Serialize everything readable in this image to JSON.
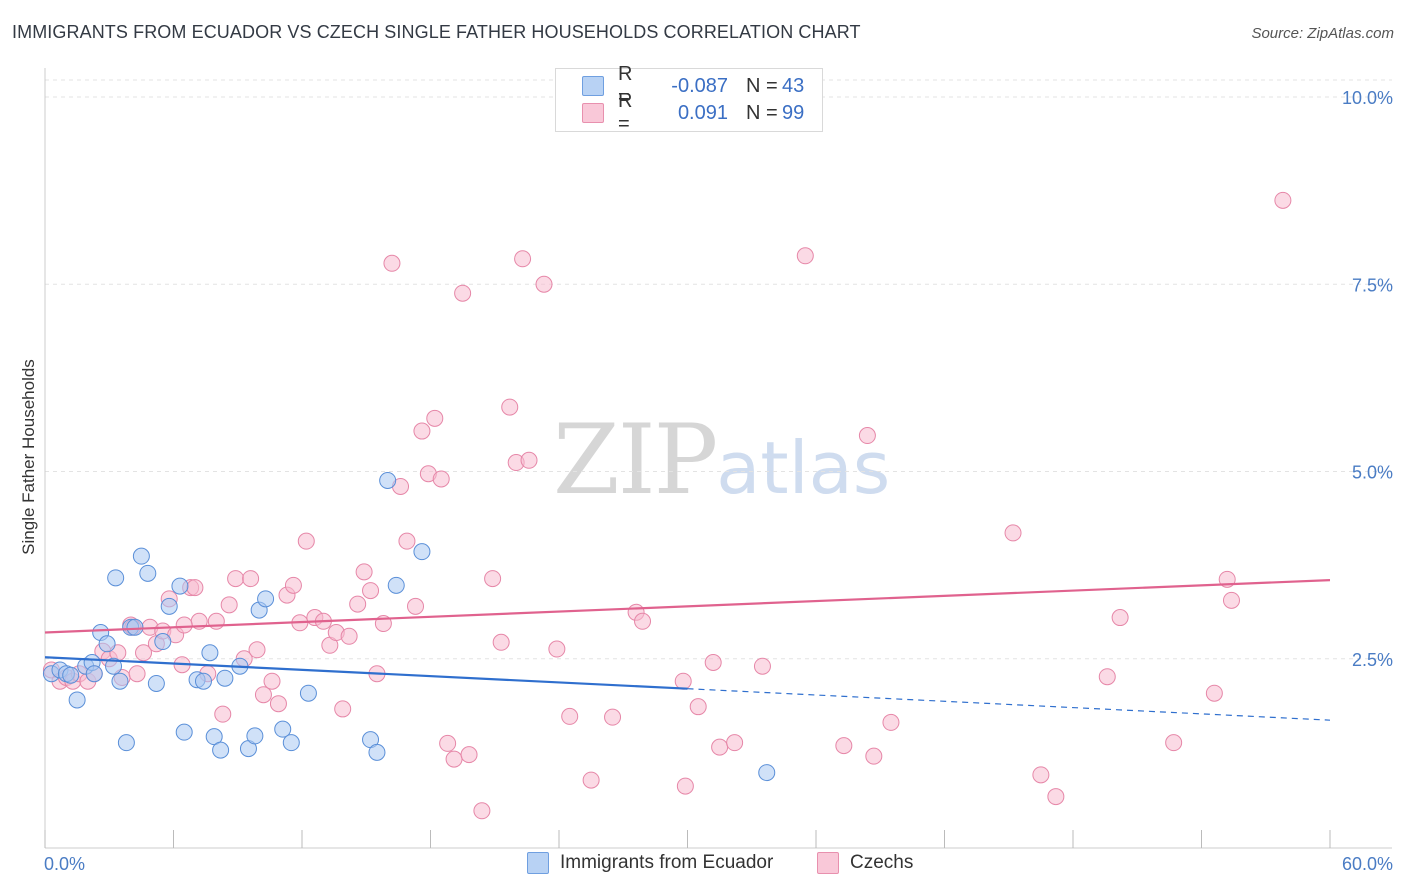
{
  "header": {
    "title": "IMMIGRANTS FROM ECUADOR VS CZECH SINGLE FATHER HOUSEHOLDS CORRELATION CHART",
    "source": "Source: ZipAtlas.com"
  },
  "watermark": {
    "zip": "ZIP",
    "atlas": "atlas"
  },
  "colors": {
    "ecuador_fill": "#a9c8f2",
    "ecuador_stroke": "#5a8fd8",
    "ecuador_line": "#2f6fce",
    "czech_fill": "#f7bcd0",
    "czech_stroke": "#e687a8",
    "czech_line": "#e0628e",
    "axis_text": "#4a7cc4",
    "grid": "#e3e3e3"
  },
  "legend_top": {
    "rows": [
      {
        "r_label": "R =",
        "r_value": "-0.087",
        "n_label": "N =",
        "n_value": "43"
      },
      {
        "r_label": "R =",
        "r_value": "0.091",
        "n_label": "N =",
        "n_value": "99"
      }
    ]
  },
  "legend_bottom": {
    "items": [
      "Immigrants from Ecuador",
      "Czechs"
    ]
  },
  "chart_data": {
    "type": "scatter",
    "title": "IMMIGRANTS FROM ECUADOR VS CZECH SINGLE FATHER HOUSEHOLDS CORRELATION CHART",
    "xlabel": "",
    "ylabel": "Single Father Households",
    "xlim": [
      0,
      60
    ],
    "ylim": [
      0,
      10.5
    ],
    "x_tick_labels": [
      "0.0%",
      "60.0%"
    ],
    "y_ticks": [
      2.5,
      5.0,
      7.5,
      10.0
    ],
    "y_tick_labels": [
      "2.5%",
      "5.0%",
      "7.5%",
      "10.0%"
    ],
    "grid": true,
    "legend_position": "top-center",
    "series": [
      {
        "name": "Immigrants from Ecuador",
        "r": -0.087,
        "n": 43,
        "trend": {
          "x0": 0,
          "y0": 2.52,
          "x1": 30,
          "y1": 2.1,
          "dashed_to_x": 60,
          "dashed_to_y": 1.68
        },
        "points": [
          [
            0.3,
            2.3
          ],
          [
            0.7,
            2.35
          ],
          [
            1.0,
            2.3
          ],
          [
            1.5,
            1.95
          ],
          [
            1.9,
            2.4
          ],
          [
            2.2,
            2.45
          ],
          [
            2.3,
            2.3
          ],
          [
            2.6,
            2.85
          ],
          [
            2.9,
            2.7
          ],
          [
            3.2,
            2.4
          ],
          [
            3.3,
            3.58
          ],
          [
            3.5,
            2.2
          ],
          [
            3.8,
            1.38
          ],
          [
            4.0,
            2.92
          ],
          [
            4.2,
            2.92
          ],
          [
            4.5,
            3.87
          ],
          [
            4.8,
            3.64
          ],
          [
            5.2,
            2.17
          ],
          [
            5.5,
            2.73
          ],
          [
            5.8,
            3.2
          ],
          [
            6.3,
            3.47
          ],
          [
            6.5,
            1.52
          ],
          [
            7.1,
            2.22
          ],
          [
            7.4,
            2.2
          ],
          [
            7.7,
            2.58
          ],
          [
            7.9,
            1.46
          ],
          [
            8.2,
            1.28
          ],
          [
            8.4,
            2.24
          ],
          [
            9.1,
            2.4
          ],
          [
            9.5,
            1.3
          ],
          [
            9.8,
            1.47
          ],
          [
            10.0,
            3.15
          ],
          [
            10.3,
            3.3
          ],
          [
            11.1,
            1.56
          ],
          [
            11.5,
            1.38
          ],
          [
            12.3,
            2.04
          ],
          [
            15.2,
            1.42
          ],
          [
            15.5,
            1.25
          ],
          [
            16.0,
            4.88
          ],
          [
            16.4,
            3.48
          ],
          [
            17.6,
            3.93
          ],
          [
            33.7,
            0.98
          ],
          [
            1.2,
            2.28
          ]
        ]
      },
      {
        "name": "Czechs",
        "r": 0.091,
        "n": 99,
        "trend": {
          "x0": 0,
          "y0": 2.85,
          "x1": 60,
          "y1": 3.55
        },
        "points": [
          [
            0.3,
            2.35
          ],
          [
            0.7,
            2.2
          ],
          [
            1.0,
            2.25
          ],
          [
            1.3,
            2.2
          ],
          [
            1.6,
            2.3
          ],
          [
            2.0,
            2.2
          ],
          [
            2.3,
            2.3
          ],
          [
            2.7,
            2.6
          ],
          [
            3.0,
            2.5
          ],
          [
            3.4,
            2.58
          ],
          [
            3.6,
            2.25
          ],
          [
            4.0,
            2.95
          ],
          [
            4.3,
            2.3
          ],
          [
            4.6,
            2.58
          ],
          [
            4.9,
            2.92
          ],
          [
            5.2,
            2.7
          ],
          [
            5.5,
            2.87
          ],
          [
            5.8,
            3.3
          ],
          [
            6.1,
            2.82
          ],
          [
            6.4,
            2.42
          ],
          [
            6.8,
            3.45
          ],
          [
            7.0,
            3.45
          ],
          [
            7.2,
            3.0
          ],
          [
            7.6,
            2.3
          ],
          [
            8.0,
            3.0
          ],
          [
            8.3,
            1.76
          ],
          [
            8.6,
            3.22
          ],
          [
            8.9,
            3.57
          ],
          [
            9.3,
            2.5
          ],
          [
            9.6,
            3.57
          ],
          [
            9.9,
            2.62
          ],
          [
            10.2,
            2.02
          ],
          [
            10.6,
            2.2
          ],
          [
            10.9,
            1.9
          ],
          [
            11.3,
            3.35
          ],
          [
            11.6,
            3.48
          ],
          [
            11.9,
            2.98
          ],
          [
            12.2,
            4.07
          ],
          [
            12.6,
            3.05
          ],
          [
            13.0,
            3.0
          ],
          [
            13.3,
            2.68
          ],
          [
            13.6,
            2.85
          ],
          [
            13.9,
            1.83
          ],
          [
            14.2,
            2.8
          ],
          [
            14.6,
            3.23
          ],
          [
            14.9,
            3.66
          ],
          [
            15.2,
            3.41
          ],
          [
            15.5,
            2.3
          ],
          [
            15.8,
            2.97
          ],
          [
            16.2,
            7.78
          ],
          [
            16.6,
            4.8
          ],
          [
            16.9,
            4.07
          ],
          [
            17.3,
            3.2
          ],
          [
            17.6,
            5.54
          ],
          [
            17.9,
            4.97
          ],
          [
            18.2,
            5.71
          ],
          [
            18.5,
            4.9
          ],
          [
            18.8,
            1.37
          ],
          [
            19.1,
            1.16
          ],
          [
            19.5,
            7.38
          ],
          [
            19.8,
            1.22
          ],
          [
            20.4,
            0.47
          ],
          [
            20.9,
            3.57
          ],
          [
            21.3,
            2.72
          ],
          [
            21.7,
            5.86
          ],
          [
            22.0,
            5.12
          ],
          [
            22.6,
            5.15
          ],
          [
            22.3,
            7.84
          ],
          [
            23.3,
            7.5
          ],
          [
            23.9,
            2.63
          ],
          [
            24.5,
            1.73
          ],
          [
            25.5,
            0.88
          ],
          [
            26.5,
            1.72
          ],
          [
            27.6,
            3.12
          ],
          [
            27.9,
            3.0
          ],
          [
            29.8,
            2.2
          ],
          [
            29.9,
            0.8
          ],
          [
            30.5,
            1.86
          ],
          [
            31.2,
            2.45
          ],
          [
            31.5,
            1.32
          ],
          [
            32.2,
            1.38
          ],
          [
            33.5,
            2.4
          ],
          [
            35.5,
            7.88
          ],
          [
            37.3,
            1.34
          ],
          [
            38.4,
            5.48
          ],
          [
            38.7,
            1.2
          ],
          [
            39.5,
            1.65
          ],
          [
            45.2,
            4.18
          ],
          [
            46.5,
            0.95
          ],
          [
            47.2,
            0.66
          ],
          [
            49.6,
            2.26
          ],
          [
            50.2,
            3.05
          ],
          [
            52.7,
            1.38
          ],
          [
            54.6,
            2.04
          ],
          [
            55.2,
            3.56
          ],
          [
            55.4,
            3.28
          ],
          [
            57.8,
            8.62
          ],
          [
            4.1,
            2.92
          ],
          [
            6.5,
            2.95
          ]
        ]
      }
    ]
  }
}
